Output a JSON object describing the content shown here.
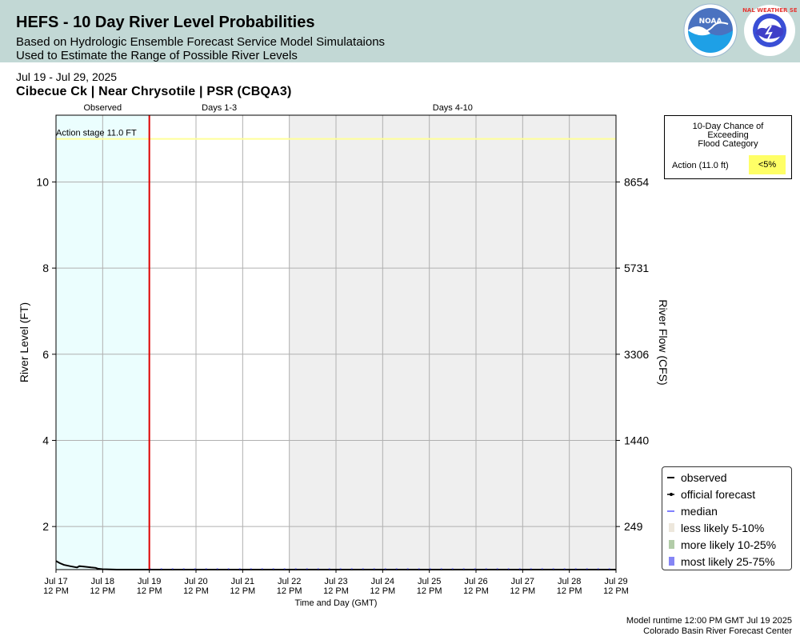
{
  "header": {
    "title": "HEFS - 10 Day River Level Probabilities",
    "subtitle1": "Based on Hydrologic Ensemble Forecast Service Model Simulataions",
    "subtitle2": "Used to Estimate the Range of Possible River Levels",
    "noaa_logo_text": "NOAA",
    "nws_logo_text": "NATIONAL WEATHER SERVICE",
    "background": "#c2d8d5"
  },
  "date_range": "Jul 19 - Jul 29, 2025",
  "station": "Cibecue Ck | Near Chrysotile | PSR (CBQA3)",
  "chart_data": {
    "type": "line",
    "x_start": "Jul 17 12 PM",
    "x_end": "Jul 29 12 PM",
    "x_tick_labels": [
      [
        "Jul 17",
        "12 PM"
      ],
      [
        "Jul 18",
        "12 PM"
      ],
      [
        "Jul 19",
        "12 PM"
      ],
      [
        "Jul 20",
        "12 PM"
      ],
      [
        "Jul 21",
        "12 PM"
      ],
      [
        "Jul 22",
        "12 PM"
      ],
      [
        "Jul 23",
        "12 PM"
      ],
      [
        "Jul 24",
        "12 PM"
      ],
      [
        "Jul 25",
        "12 PM"
      ],
      [
        "Jul 26",
        "12 PM"
      ],
      [
        "Jul 27",
        "12 PM"
      ],
      [
        "Jul 28",
        "12 PM"
      ],
      [
        "Jul 29",
        "12 PM"
      ]
    ],
    "xlabel": "Time and Day (GMT)",
    "ylabel": "River Level (FT)",
    "ylabel_right": "River Flow (CFS)",
    "ylim": [
      1.0,
      11.55
    ],
    "y_ticks": [
      2,
      4,
      6,
      8,
      10
    ],
    "y_right_ticks": [
      {
        "level": 2,
        "label": "249"
      },
      {
        "level": 4,
        "label": "1440"
      },
      {
        "level": 6,
        "label": "3306"
      },
      {
        "level": 8,
        "label": "5731"
      },
      {
        "level": 10,
        "label": "8654"
      }
    ],
    "grid": true,
    "periods": [
      {
        "label": "Observed",
        "from_day": 0,
        "to_day": 2,
        "color": "#ebfefe"
      },
      {
        "label": "Days 1-3",
        "from_day": 2,
        "to_day": 5,
        "color": "#ffffff"
      },
      {
        "label": "Days 4-10",
        "from_day": 5,
        "to_day": 12,
        "color": "#efefef"
      }
    ],
    "forecast_start_day": 2,
    "action_stage": {
      "value": 11.0,
      "label": "Action stage 11.0 FT",
      "color": "#ffff99"
    },
    "series": [
      {
        "name": "observed",
        "color": "#000000",
        "days": [
          0,
          0.08,
          0.17,
          0.3,
          0.45,
          0.5,
          0.6,
          0.75,
          0.85,
          0.9,
          1.0,
          1.3,
          1.6,
          2.0
        ],
        "values": [
          1.2,
          1.15,
          1.11,
          1.08,
          1.05,
          1.08,
          1.07,
          1.05,
          1.04,
          1.02,
          1.01,
          1.0,
          1.0,
          1.0
        ]
      },
      {
        "name": "official forecast",
        "color": "#000000",
        "days": [
          2,
          12
        ],
        "values": [
          1.0,
          1.0
        ]
      },
      {
        "name": "median",
        "color": "#5555ff",
        "days": [
          2,
          12
        ],
        "values": [
          1.01,
          1.01
        ]
      }
    ],
    "legend": [
      {
        "name": "observed",
        "color": "#000000",
        "kind": "line"
      },
      {
        "name": "official forecast",
        "color": "#000000",
        "kind": "dotline"
      },
      {
        "name": "median",
        "color": "#5555ff",
        "kind": "dash"
      },
      {
        "name": "less likely 5-10%",
        "color": "#ede7dc",
        "kind": "patch"
      },
      {
        "name": "more likely 10-25%",
        "color": "#b2cca8",
        "kind": "patch"
      },
      {
        "name": "most likely 25-75%",
        "color": "#8585f5",
        "kind": "patch"
      }
    ],
    "legend_position": "lower-right",
    "colors": {
      "forecast_divider": "#dd0000",
      "grid": "#b0b0b0"
    }
  },
  "flood_chance": {
    "title_lines": [
      "10-Day Chance of",
      "Exceeding",
      "Flood Category"
    ],
    "category": "Action (11.0 ft)",
    "value": "<5%",
    "value_color": "#ffff66"
  },
  "footer": {
    "runtime": "Model runtime 12:00 PM GMT Jul 19 2025",
    "center": "Colorado Basin River Forecast Center"
  }
}
